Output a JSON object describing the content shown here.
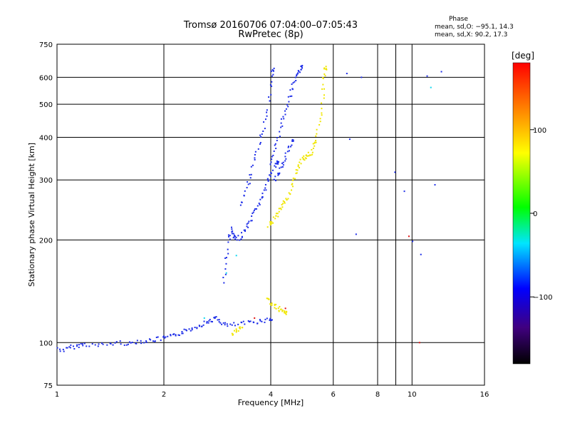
{
  "header": {
    "title_line1": "Tromsø 20160706 07:04:00–07:05:43",
    "title_line2": "RwPretec (8p)"
  },
  "phase_box": {
    "heading": "Phase",
    "line_o": "mean, sd,O: −95.1, 14.3",
    "line_x": "mean, sd,X:  90.2, 17.3"
  },
  "chart_data": {
    "type": "scatter",
    "xlabel": "Frequency [MHz]",
    "ylabel": "Stationary phase Virtual Height [km]",
    "x_scale": "log",
    "y_scale": "log",
    "xlim": [
      1,
      16
    ],
    "ylim": [
      75,
      750
    ],
    "x_ticks": [
      1,
      2,
      4,
      6,
      8,
      10,
      16
    ],
    "x_tick_labels": [
      "1",
      "2",
      "4",
      "6",
      "8",
      "10",
      "16"
    ],
    "y_ticks": [
      75,
      100,
      200,
      300,
      400,
      500,
      600,
      750
    ],
    "y_tick_labels": [
      "75",
      "100",
      "200",
      "300",
      "400",
      "500",
      "600",
      "750"
    ],
    "grid": true,
    "colorbar": {
      "label": "[deg]",
      "range": [
        -180,
        180
      ],
      "ticks": [
        100,
        0,
        -100
      ],
      "tick_labels": [
        "100",
        "0",
        "−100"
      ]
    },
    "trace_colors": {
      "O": "#1e2ee8",
      "X": "#f0e600",
      "low": "#1840ff",
      "cyan": "#10d8f0",
      "red": "#e01010"
    },
    "traces": [
      {
        "mode": "O",
        "x": [
          1.0,
          1.05,
          1.1,
          1.15,
          1.2,
          1.3,
          1.4,
          1.5,
          1.6,
          1.7,
          1.8,
          1.9,
          2.0,
          2.1,
          2.2,
          2.3,
          2.4,
          2.5,
          2.6,
          2.7,
          2.8,
          2.9,
          3.0,
          3.2,
          3.4,
          3.6,
          3.8,
          4.0
        ],
        "y": [
          96,
          95,
          97,
          98,
          99,
          98,
          99,
          100,
          99,
          101,
          101,
          102,
          103,
          104,
          106,
          108,
          110,
          112,
          114,
          116,
          118,
          115,
          112,
          113,
          114,
          115,
          116,
          117
        ]
      },
      {
        "mode": "O",
        "x": [
          2.95,
          3.0,
          3.05,
          3.1,
          3.15,
          3.2,
          3.3,
          3.4,
          3.5,
          3.6,
          3.7,
          3.8,
          3.9,
          4.0,
          4.1,
          4.2
        ],
        "y": [
          150,
          175,
          200,
          215,
          205,
          200,
          205,
          215,
          225,
          240,
          255,
          270,
          290,
          310,
          330,
          340
        ]
      },
      {
        "mode": "O",
        "x": [
          3.3,
          3.4,
          3.5,
          3.6,
          3.7,
          3.8,
          3.9,
          4.0,
          4.05
        ],
        "y": [
          250,
          280,
          300,
          340,
          380,
          420,
          470,
          560,
          630
        ]
      },
      {
        "mode": "O",
        "x": [
          4.0,
          4.1,
          4.2,
          4.3,
          4.4,
          4.5,
          4.6,
          4.7,
          4.8,
          4.9
        ],
        "y": [
          330,
          360,
          400,
          440,
          480,
          520,
          560,
          600,
          620,
          640
        ]
      },
      {
        "mode": "O",
        "x": [
          4.1,
          4.2,
          4.3,
          4.4,
          4.5,
          4.6
        ],
        "y": [
          300,
          310,
          330,
          350,
          370,
          390
        ]
      },
      {
        "mode": "X",
        "x": [
          3.95,
          4.0,
          4.1,
          4.2,
          4.3,
          4.4,
          4.5,
          4.6,
          4.7,
          4.8,
          4.9,
          5.0,
          5.1,
          5.2,
          5.3,
          5.4,
          5.5,
          5.6,
          5.65,
          5.7
        ],
        "y": [
          220,
          225,
          230,
          240,
          250,
          260,
          270,
          290,
          310,
          330,
          345,
          350,
          355,
          360,
          380,
          400,
          450,
          520,
          590,
          640
        ]
      },
      {
        "mode": "X",
        "x": [
          3.9,
          4.0,
          4.1,
          4.2,
          4.3,
          4.4
        ],
        "y": [
          135,
          130,
          128,
          126,
          124,
          122
        ]
      },
      {
        "mode": "X",
        "x": [
          3.1,
          3.2,
          3.3
        ],
        "y": [
          106,
          108,
          110
        ]
      },
      {
        "mode": "O",
        "x": [
          6.6,
          6.7,
          7.0,
          7.2,
          9.0,
          9.5,
          10.0,
          10.5,
          11.0,
          11.5,
          12.0
        ],
        "y": [
          610,
          390,
          210,
          600,
          320,
          280,
          200,
          180,
          600,
          290,
          620
        ]
      }
    ]
  }
}
